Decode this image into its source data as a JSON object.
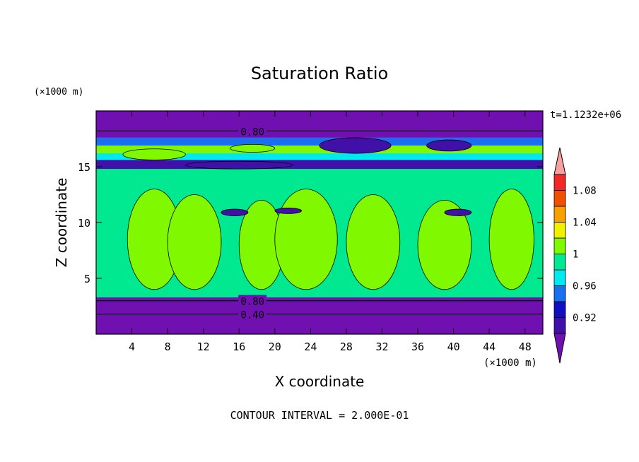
{
  "chart_data": {
    "type": "heatmap",
    "title": "Saturation Ratio",
    "xlabel": "X coordinate",
    "ylabel": "Z coordinate",
    "x_unit": "(×1000 m)",
    "y_unit": "(×1000 m)",
    "time_label": "t=1.1232e+06",
    "footer": "CONTOUR INTERVAL = 2.000E-01",
    "xlim": [
      0,
      50
    ],
    "ylim": [
      0,
      20
    ],
    "x_ticks": [
      4,
      8,
      12,
      16,
      20,
      24,
      28,
      32,
      36,
      40,
      44,
      48
    ],
    "y_ticks": [
      5,
      10,
      15
    ],
    "contour_labels": [
      {
        "text": "0.80",
        "x": 17.5,
        "z": 18.2
      },
      {
        "text": "0.80",
        "x": 17.5,
        "z": 3.0
      },
      {
        "text": "0.40",
        "x": 17.5,
        "z": 1.8
      }
    ],
    "colorbar": {
      "levels": [
        0.9,
        0.92,
        0.94,
        0.96,
        0.98,
        1.0,
        1.02,
        1.04,
        1.06,
        1.08,
        1.1
      ],
      "labels": [
        "0.92",
        "0.96",
        "1",
        "1.04",
        "1.08"
      ],
      "colors": [
        "#4010a8",
        "#1010c0",
        "#1870f0",
        "#00e8f0",
        "#00e890",
        "#80f800",
        "#f0f000",
        "#f8a000",
        "#f05000",
        "#f02828"
      ],
      "under_color": "#7010b0",
      "over_color": "#f8a0a0"
    },
    "bands": [
      {
        "z": [
          0,
          3.3
        ],
        "value": 0.4,
        "color": "#7010b0"
      },
      {
        "z": [
          3.3,
          14.8
        ],
        "value": 0.99,
        "color": "#00e890"
      },
      {
        "z": [
          14.8,
          15.6
        ],
        "value": 0.93,
        "color": "#4010a8"
      },
      {
        "z": [
          15.6,
          16.2
        ],
        "value": 0.97,
        "color": "#00e8f0"
      },
      {
        "z": [
          16.2,
          16.9
        ],
        "value": 1.01,
        "color": "#80f800"
      },
      {
        "z": [
          16.9,
          17.6
        ],
        "value": 0.95,
        "color": "#1870f0"
      },
      {
        "z": [
          17.6,
          20
        ],
        "value": 0.8,
        "color": "#7010b0"
      }
    ],
    "regions": [
      {
        "value": 1.01,
        "color": "#80f800",
        "x": [
          3.5,
          9.5
        ],
        "z": [
          4,
          13
        ]
      },
      {
        "value": 1.01,
        "color": "#80f800",
        "x": [
          8,
          14
        ],
        "z": [
          4,
          12.5
        ]
      },
      {
        "value": 1.01,
        "color": "#80f800",
        "x": [
          16,
          21
        ],
        "z": [
          4,
          12
        ]
      },
      {
        "value": 1.01,
        "color": "#80f800",
        "x": [
          20,
          27
        ],
        "z": [
          4,
          13
        ]
      },
      {
        "value": 1.01,
        "color": "#80f800",
        "x": [
          28,
          34
        ],
        "z": [
          4,
          12.5
        ]
      },
      {
        "value": 1.01,
        "color": "#80f800",
        "x": [
          36,
          42
        ],
        "z": [
          4,
          12
        ]
      },
      {
        "value": 1.01,
        "color": "#80f800",
        "x": [
          44,
          49
        ],
        "z": [
          4,
          13
        ]
      },
      {
        "value": 1.01,
        "color": "#80f800",
        "x": [
          15,
          20
        ],
        "z": [
          16.3,
          17.0
        ]
      },
      {
        "value": 1.01,
        "color": "#80f800",
        "x": [
          3,
          10
        ],
        "z": [
          15.6,
          16.6
        ]
      },
      {
        "value": 0.93,
        "color": "#4010a8",
        "x": [
          10,
          22
        ],
        "z": [
          14.8,
          15.5
        ]
      },
      {
        "value": 0.93,
        "color": "#4010a8",
        "x": [
          25,
          33
        ],
        "z": [
          16.2,
          17.6
        ]
      },
      {
        "value": 0.93,
        "color": "#4010a8",
        "x": [
          37,
          42
        ],
        "z": [
          16.4,
          17.4
        ]
      },
      {
        "value": 0.93,
        "color": "#4010a8",
        "x": [
          39,
          42
        ],
        "z": [
          10.6,
          11.2
        ]
      },
      {
        "value": 0.93,
        "color": "#4010a8",
        "x": [
          14,
          17
        ],
        "z": [
          10.6,
          11.2
        ]
      },
      {
        "value": 0.93,
        "color": "#4010a8",
        "x": [
          20,
          23
        ],
        "z": [
          10.8,
          11.3
        ]
      }
    ]
  }
}
